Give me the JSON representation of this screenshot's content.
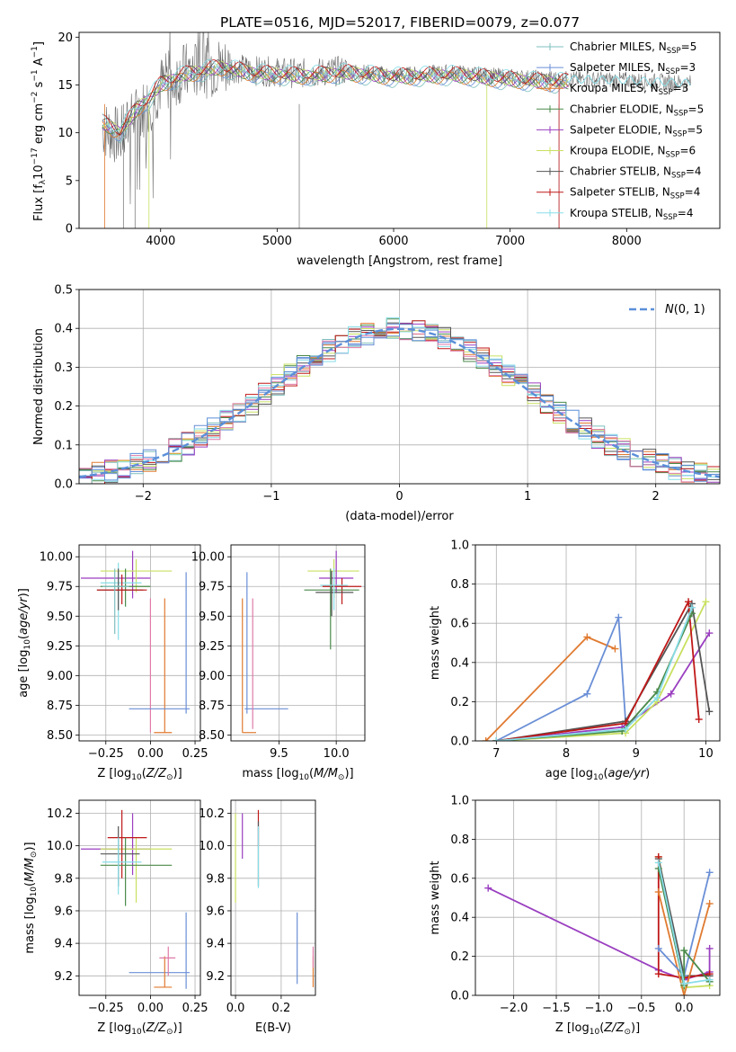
{
  "figure_title": "PLATE=0516, MJD=52017, FIBERID=0079, z=0.077",
  "colors": {
    "Chabrier MILES": "#7fbfbf",
    "Salpeter MILES": "#6a8fd6",
    "Kroupa MILES": "#e07a30",
    "Chabrier ELODIE": "#4a8a4a",
    "Salpeter ELODIE": "#9a3fc0",
    "Kroupa ELODIE": "#c8e060",
    "Chabrier STELIB": "#555555",
    "Salpeter STELIB": "#c01818",
    "Kroupa STELIB": "#88dde8",
    "pink": "#e07aa8",
    "normal": "#5b8fd9"
  },
  "legend": [
    {
      "key": "Chabrier MILES",
      "label": "Chabrier MILES, N",
      "nssp": "5"
    },
    {
      "key": "Salpeter MILES",
      "label": "Salpeter MILES, N",
      "nssp": "3"
    },
    {
      "key": "Kroupa MILES",
      "label": "Kroupa MILES, N",
      "nssp": "3"
    },
    {
      "key": "Chabrier ELODIE",
      "label": "Chabrier ELODIE, N",
      "nssp": "5"
    },
    {
      "key": "Salpeter ELODIE",
      "label": "Salpeter ELODIE, N",
      "nssp": "5"
    },
    {
      "key": "Kroupa ELODIE",
      "label": "Kroupa ELODIE, N",
      "nssp": "6"
    },
    {
      "key": "Chabrier STELIB",
      "label": "Chabrier STELIB, N",
      "nssp": "4"
    },
    {
      "key": "Salpeter STELIB",
      "label": "Salpeter STELIB, N",
      "nssp": "4"
    },
    {
      "key": "Kroupa STELIB",
      "label": "Kroupa STELIB, N",
      "nssp": "4"
    }
  ],
  "legend_sub": "SSP",
  "chart_data": [
    {
      "id": "spectrum",
      "type": "line",
      "xlabel": "wavelength [Angstrom, rest frame]",
      "ylabel": "Flux [f",
      "ylabel_sub": "λ",
      "ylabel_rest": "10",
      "ylabel_exp": "−17",
      "ylabel_units": " erg cm",
      "xlim": [
        3300,
        8800
      ],
      "ylim": [
        0,
        20.5
      ],
      "xticks": [
        4000,
        5000,
        6000,
        7000,
        8000
      ],
      "yticks": [
        0,
        5,
        10,
        15,
        20
      ],
      "continuum_anchors": [
        [
          3500,
          10.5
        ],
        [
          3650,
          9.5
        ],
        [
          3800,
          12.0
        ],
        [
          3900,
          13.0
        ],
        [
          4000,
          15.0
        ],
        [
          4200,
          16.3
        ],
        [
          4500,
          17.0
        ],
        [
          4800,
          16.5
        ],
        [
          5200,
          16.2
        ],
        [
          5600,
          16.5
        ],
        [
          6000,
          16.0
        ],
        [
          6500,
          16.3
        ],
        [
          7000,
          15.8
        ],
        [
          7500,
          15.6
        ],
        [
          8000,
          15.5
        ],
        [
          8500,
          15.2
        ]
      ],
      "model_anchors": [
        [
          3500,
          11.0
        ],
        [
          3650,
          10.0
        ],
        [
          3800,
          12.5
        ],
        [
          3900,
          13.5
        ],
        [
          4000,
          15.0
        ],
        [
          4200,
          16.0
        ],
        [
          4500,
          16.8
        ],
        [
          4800,
          16.2
        ],
        [
          5200,
          15.9
        ],
        [
          5600,
          16.2
        ],
        [
          6000,
          15.8
        ],
        [
          6500,
          16.0
        ],
        [
          7000,
          15.5
        ],
        [
          7400,
          15.2
        ],
        [
          7500,
          15.3
        ]
      ]
    },
    {
      "id": "residuals",
      "type": "histogram",
      "xlabel": "(data-model)/error",
      "ylabel": "Normed distribution",
      "xlim": [
        -2.5,
        2.5
      ],
      "ylim": [
        0,
        0.5
      ],
      "xticks": [
        -2,
        -1,
        0,
        1,
        2
      ],
      "yticks": [
        0,
        0.1,
        0.2,
        0.3,
        0.4,
        0.5
      ],
      "normal_label": "N(0, 1)"
    },
    {
      "id": "age_vs_Z",
      "type": "scatter",
      "xlabel": "Z [log",
      "ylabel": "age  [log",
      "xlim": [
        -0.4,
        0.28
      ],
      "ylim": [
        8.45,
        10.1
      ],
      "xticks": [
        -0.25,
        0.0,
        0.25
      ],
      "yticks": [
        8.5,
        8.75,
        9.0,
        9.25,
        9.5,
        9.75,
        10.0
      ],
      "points": [
        {
          "s": "Salpeter ELODIE",
          "x": -0.1,
          "y": 9.82,
          "xl": -0.39,
          "xr": 0.0,
          "yl": 9.65,
          "yh": 10.05
        },
        {
          "s": "Kroupa ELODIE",
          "x": -0.08,
          "y": 9.88,
          "xl": -0.28,
          "xr": 0.12,
          "yl": 9.7,
          "yh": 9.98
        },
        {
          "s": "Chabrier ELODIE",
          "x": -0.14,
          "y": 9.75,
          "xl": -0.28,
          "xr": 0.0,
          "yl": 9.58,
          "yh": 9.9
        },
        {
          "s": "Kroupa STELIB",
          "x": -0.18,
          "y": 9.78,
          "xl": -0.28,
          "xr": -0.05,
          "yl": 9.3,
          "yh": 9.95
        },
        {
          "s": "Chabrier STELIB",
          "x": -0.18,
          "y": 9.72,
          "xl": -0.3,
          "xr": -0.04,
          "yl": 9.55,
          "yh": 9.9
        },
        {
          "s": "Salpeter STELIB",
          "x": -0.16,
          "y": 9.72,
          "xl": -0.3,
          "xr": -0.02,
          "yl": 9.6,
          "yh": 9.85
        },
        {
          "s": "Chabrier MILES",
          "x": -0.2,
          "y": 9.75,
          "xl": -0.27,
          "xr": -0.12,
          "yl": 9.35,
          "yh": 9.9
        },
        {
          "s": "Kroupa MILES",
          "x": 0.08,
          "y": 8.52,
          "xl": 0.02,
          "xr": 0.12,
          "yl": 8.52,
          "yh": 9.65
        },
        {
          "s": "pink",
          "x": 0.0,
          "y": 8.52,
          "xl": 0.0,
          "xr": 0.0,
          "yl": 8.52,
          "yh": 9.65
        },
        {
          "s": "Salpeter MILES",
          "x": 0.2,
          "y": 8.72,
          "xl": -0.12,
          "xr": 0.22,
          "yl": 8.68,
          "yh": 9.87
        }
      ]
    },
    {
      "id": "age_vs_mass",
      "type": "scatter",
      "xlabel": "mass [log",
      "xlim": [
        9.08,
        10.25
      ],
      "ylim": [
        8.45,
        10.1
      ],
      "xticks": [
        9.5,
        10.0
      ],
      "yticks": [
        8.5,
        8.75,
        9.0,
        9.25,
        9.5,
        9.75,
        10.0
      ],
      "points": [
        {
          "s": "Kroupa ELODIE",
          "x": 9.98,
          "y": 9.88,
          "xl": 9.75,
          "xr": 10.2,
          "yl": 9.65,
          "yh": 9.98
        },
        {
          "s": "Salpeter ELODIE",
          "x": 10.0,
          "y": 9.82,
          "xl": 9.85,
          "xr": 10.15,
          "yl": 9.7,
          "yh": 10.05
        },
        {
          "s": "Salpeter STELIB",
          "x": 10.05,
          "y": 9.75,
          "xl": 9.88,
          "xr": 10.22,
          "yl": 9.6,
          "yh": 9.82
        },
        {
          "s": "Chabrier ELODIE",
          "x": 9.95,
          "y": 9.72,
          "xl": 9.72,
          "xr": 10.2,
          "yl": 9.22,
          "yh": 9.9
        },
        {
          "s": "Chabrier STELIB",
          "x": 9.96,
          "y": 9.7,
          "xl": 9.82,
          "xr": 10.15,
          "yl": 9.5,
          "yh": 9.88
        },
        {
          "s": "Kroupa STELIB",
          "x": 9.98,
          "y": 9.76,
          "xl": 9.86,
          "xr": 10.1,
          "yl": 9.55,
          "yh": 9.9
        },
        {
          "s": "Salpeter MILES",
          "x": 9.22,
          "y": 8.72,
          "xl": 9.2,
          "xr": 9.58,
          "yl": 8.68,
          "yh": 9.87
        },
        {
          "s": "Kroupa MILES",
          "x": 9.18,
          "y": 8.52,
          "xl": 9.18,
          "xr": 9.3,
          "yl": 8.52,
          "yh": 9.65
        },
        {
          "s": "pink",
          "x": 9.27,
          "y": 8.55,
          "xl": 9.27,
          "xr": 9.27,
          "yl": 8.55,
          "yh": 9.65
        }
      ]
    },
    {
      "id": "weight_vs_age",
      "type": "line",
      "xlabel": "age  [log",
      "ylabel": "mass weight",
      "xlim": [
        6.7,
        10.2
      ],
      "ylim": [
        0,
        1.0
      ],
      "xticks": [
        7,
        8,
        9,
        10
      ],
      "yticks": [
        0,
        0.2,
        0.4,
        0.6,
        0.8,
        1.0
      ],
      "series": [
        {
          "s": "Kroupa MILES",
          "x": [
            6.85,
            8.3,
            8.7
          ],
          "y": [
            0.0,
            0.53,
            0.47
          ]
        },
        {
          "s": "Salpeter MILES",
          "x": [
            7.0,
            8.3,
            8.75,
            8.85
          ],
          "y": [
            0.0,
            0.24,
            0.63,
            0.1
          ]
        },
        {
          "s": "Salpeter ELODIE",
          "x": [
            7.0,
            8.8,
            9.5,
            10.05
          ],
          "y": [
            0.0,
            0.07,
            0.24,
            0.55
          ]
        },
        {
          "s": "Kroupa ELODIE",
          "x": [
            7.0,
            8.85,
            9.3,
            10.0
          ],
          "y": [
            0.0,
            0.04,
            0.2,
            0.71
          ]
        },
        {
          "s": "Chabrier STELIB",
          "x": [
            7.0,
            8.85,
            9.8,
            10.05
          ],
          "y": [
            0.0,
            0.1,
            0.7,
            0.15
          ]
        },
        {
          "s": "Salpeter STELIB",
          "x": [
            7.0,
            8.85,
            9.75,
            9.9
          ],
          "y": [
            0.0,
            0.09,
            0.71,
            0.11
          ]
        },
        {
          "s": "Chabrier ELODIE",
          "x": [
            7.0,
            8.8,
            9.3,
            9.8
          ],
          "y": [
            0.0,
            0.05,
            0.25,
            0.65
          ]
        },
        {
          "s": "Kroupa STELIB",
          "x": [
            7.0,
            8.85,
            9.3,
            9.8
          ],
          "y": [
            0.0,
            0.06,
            0.22,
            0.68
          ]
        }
      ]
    },
    {
      "id": "mass_vs_Z",
      "type": "scatter",
      "xlabel": "Z [log",
      "ylabel": "mass [log",
      "xlim": [
        -0.4,
        0.28
      ],
      "ylim": [
        9.08,
        10.28
      ],
      "xticks": [
        -0.25,
        0.0,
        0.25
      ],
      "yticks": [
        9.2,
        9.4,
        9.6,
        9.8,
        10.0,
        10.2
      ],
      "points": [
        {
          "s": "Salpeter ELODIE",
          "x": -0.1,
          "y": 9.98,
          "xl": -0.39,
          "xr": 0.0,
          "yl": 9.82,
          "yh": 10.2
        },
        {
          "s": "Kroupa ELODIE",
          "x": -0.08,
          "y": 9.98,
          "xl": -0.28,
          "xr": 0.12,
          "yl": 9.65,
          "yh": 10.05
        },
        {
          "s": "Salpeter STELIB",
          "x": -0.16,
          "y": 10.05,
          "xl": -0.24,
          "xr": -0.02,
          "yl": 9.8,
          "yh": 10.22
        },
        {
          "s": "Chabrier ELODIE",
          "x": -0.14,
          "y": 9.88,
          "xl": -0.28,
          "xr": 0.12,
          "yl": 9.63,
          "yh": 10.05
        },
        {
          "s": "Chabrier STELIB",
          "x": -0.18,
          "y": 9.95,
          "xl": -0.28,
          "xr": -0.06,
          "yl": 9.75,
          "yh": 10.12
        },
        {
          "s": "Kroupa STELIB",
          "x": -0.18,
          "y": 9.9,
          "xl": -0.27,
          "xr": -0.05,
          "yl": 9.7,
          "yh": 10.05
        },
        {
          "s": "Salpeter MILES",
          "x": 0.2,
          "y": 9.22,
          "xl": -0.12,
          "xr": 0.22,
          "yl": 9.12,
          "yh": 9.59
        },
        {
          "s": "Kroupa MILES",
          "x": 0.08,
          "y": 9.13,
          "xl": 0.02,
          "xr": 0.12,
          "yl": 9.13,
          "yh": 9.32
        },
        {
          "s": "pink",
          "x": 0.1,
          "y": 9.31,
          "xl": 0.05,
          "xr": 0.14,
          "yl": 9.2,
          "yh": 9.38
        }
      ]
    },
    {
      "id": "mass_vs_EBV",
      "type": "scatter",
      "xlabel": "E(B-V)",
      "xlim": [
        -0.02,
        0.35
      ],
      "ylim": [
        9.08,
        10.28
      ],
      "xticks": [
        0.0,
        0.2
      ],
      "yticks": [
        9.2,
        9.4,
        9.6,
        9.8,
        10.0,
        10.2
      ],
      "points": [
        {
          "s": "Kroupa ELODIE",
          "x": 0.0,
          "y": 9.9,
          "xl": 0.0,
          "xr": 0.0,
          "yl": 9.65,
          "yh": 10.2
        },
        {
          "s": "Salpeter ELODIE",
          "x": 0.03,
          "y": 10.0,
          "xl": 0.03,
          "xr": 0.03,
          "yl": 9.92,
          "yh": 10.2
        },
        {
          "s": "Salpeter STELIB",
          "x": 0.1,
          "y": 10.1,
          "xl": 0.1,
          "xr": 0.1,
          "yl": 10.0,
          "yh": 10.22
        },
        {
          "s": "Chabrier STELIB",
          "x": 0.1,
          "y": 9.9,
          "xl": 0.1,
          "xr": 0.1,
          "yl": 9.75,
          "yh": 10.15
        },
        {
          "s": "Kroupa STELIB",
          "x": 0.1,
          "y": 9.85,
          "xl": 0.1,
          "xr": 0.1,
          "yl": 9.74,
          "yh": 10.12
        },
        {
          "s": "Salpeter MILES",
          "x": 0.27,
          "y": 9.35,
          "xl": 0.27,
          "xr": 0.27,
          "yl": 9.15,
          "yh": 9.59
        },
        {
          "s": "Kroupa MILES",
          "x": 0.34,
          "y": 9.22,
          "xl": 0.34,
          "xr": 0.34,
          "yl": 9.13,
          "yh": 9.32
        },
        {
          "s": "pink",
          "x": 0.34,
          "y": 9.3,
          "xl": 0.34,
          "xr": 0.34,
          "yl": 9.25,
          "yh": 9.38
        }
      ]
    },
    {
      "id": "weight_vs_Z",
      "type": "line",
      "xlabel": "Z [log",
      "ylabel": "mass weight",
      "xlim": [
        -2.45,
        0.42
      ],
      "ylim": [
        0,
        1.0
      ],
      "xticks": [
        -2.0,
        -1.5,
        -1.0,
        -0.5,
        0.0
      ],
      "yticks": [
        0,
        0.2,
        0.4,
        0.6,
        0.8,
        1.0
      ],
      "series": [
        {
          "s": "Salpeter ELODIE",
          "x": [
            -2.3,
            -0.3,
            0.0,
            0.3,
            0.3
          ],
          "y": [
            0.55,
            0.13,
            0.08,
            0.12,
            0.24
          ]
        },
        {
          "s": "Kroupa ELODIE",
          "x": [
            -0.3,
            0.0,
            0.3
          ],
          "y": [
            0.71,
            0.04,
            0.05
          ]
        },
        {
          "s": "Chabrier STELIB",
          "x": [
            -0.3,
            0.0,
            0.3
          ],
          "y": [
            0.7,
            0.1,
            0.1
          ]
        },
        {
          "s": "Salpeter STELIB",
          "x": [
            -0.3,
            -0.3,
            0.0,
            0.3
          ],
          "y": [
            0.71,
            0.11,
            0.09,
            0.11
          ]
        },
        {
          "s": "Kroupa MILES",
          "x": [
            -0.3,
            0.0,
            0.3
          ],
          "y": [
            0.53,
            0.0,
            0.47
          ]
        },
        {
          "s": "Salpeter MILES",
          "x": [
            -0.3,
            0.0,
            0.3
          ],
          "y": [
            0.24,
            0.1,
            0.63
          ]
        },
        {
          "s": "Chabrier ELODIE",
          "x": [
            -0.3,
            0.0,
            0.0,
            0.3
          ],
          "y": [
            0.65,
            0.05,
            0.23,
            0.07
          ]
        },
        {
          "s": "Kroupa STELIB",
          "x": [
            -0.3,
            0.0,
            0.3
          ],
          "y": [
            0.68,
            0.06,
            0.08
          ]
        }
      ]
    }
  ]
}
